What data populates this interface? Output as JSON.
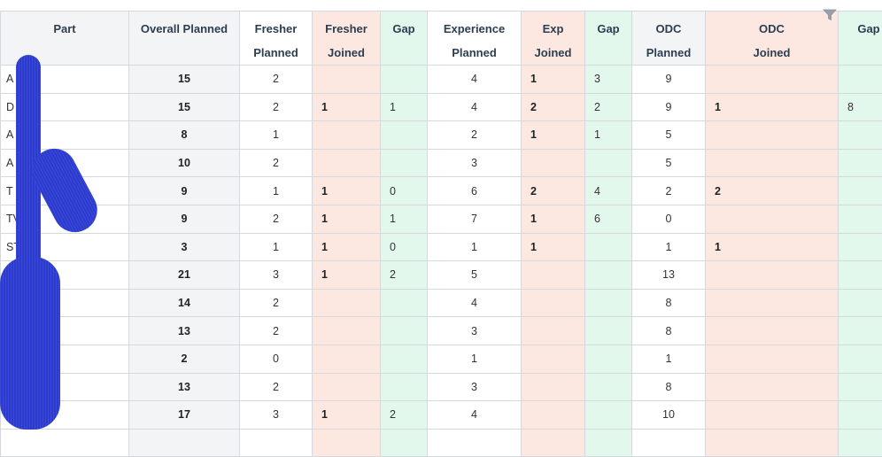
{
  "columns": [
    {
      "line1": "Part",
      "line2": ""
    },
    {
      "line1": "Overall Planned",
      "line2": ""
    },
    {
      "line1": "Fresher",
      "line2": "Planned"
    },
    {
      "line1": "Fresher",
      "line2": "Joined"
    },
    {
      "line1": "Gap",
      "line2": ""
    },
    {
      "line1": "Experience",
      "line2": "Planned"
    },
    {
      "line1": "Exp",
      "line2": "Joined"
    },
    {
      "line1": "Gap",
      "line2": ""
    },
    {
      "line1": "ODC",
      "line2": "Planned"
    },
    {
      "line1": "ODC",
      "line2": "Joined"
    },
    {
      "line1": "Gap",
      "line2": ""
    }
  ],
  "rows": [
    {
      "part": "A      e",
      "overall": "15",
      "fresher_planned": "2",
      "fresher_joined": "",
      "fresher_gap": "",
      "exp_planned": "4",
      "exp_joined": "1",
      "exp_gap": "3",
      "odc_planned": "9",
      "odc_joined": "",
      "odc_gap": ""
    },
    {
      "part": "D",
      "overall": "15",
      "fresher_planned": "2",
      "fresher_joined": "1",
      "fresher_gap": "1",
      "exp_planned": "4",
      "exp_joined": "2",
      "exp_gap": "2",
      "odc_planned": "9",
      "odc_joined": "1",
      "odc_gap": "8"
    },
    {
      "part": "A",
      "overall": "8",
      "fresher_planned": "1",
      "fresher_joined": "",
      "fresher_gap": "",
      "exp_planned": "2",
      "exp_joined": "1",
      "exp_gap": "1",
      "odc_planned": "5",
      "odc_joined": "",
      "odc_gap": ""
    },
    {
      "part": "A",
      "overall": "10",
      "fresher_planned": "2",
      "fresher_joined": "",
      "fresher_gap": "",
      "exp_planned": "3",
      "exp_joined": "",
      "exp_gap": "",
      "odc_planned": "5",
      "odc_joined": "",
      "odc_gap": ""
    },
    {
      "part": "T",
      "overall": "9",
      "fresher_planned": "1",
      "fresher_joined": "1",
      "fresher_gap": "0",
      "exp_planned": "6",
      "exp_joined": "2",
      "exp_gap": "4",
      "odc_planned": "2",
      "odc_joined": "2",
      "odc_gap": ""
    },
    {
      "part": "TV      m",
      "overall": "9",
      "fresher_planned": "2",
      "fresher_joined": "1",
      "fresher_gap": "1",
      "exp_planned": "7",
      "exp_joined": "1",
      "exp_gap": "6",
      "odc_planned": "0",
      "odc_joined": "",
      "odc_gap": ""
    },
    {
      "part": "ST",
      "overall": "3",
      "fresher_planned": "1",
      "fresher_joined": "1",
      "fresher_gap": "0",
      "exp_planned": "1",
      "exp_joined": "1",
      "exp_gap": "",
      "odc_planned": "1",
      "odc_joined": "1",
      "odc_gap": ""
    },
    {
      "part": "",
      "overall": "21",
      "fresher_planned": "3",
      "fresher_joined": "1",
      "fresher_gap": "2",
      "exp_planned": "5",
      "exp_joined": "",
      "exp_gap": "",
      "odc_planned": "13",
      "odc_joined": "",
      "odc_gap": ""
    },
    {
      "part": "",
      "overall": "14",
      "fresher_planned": "2",
      "fresher_joined": "",
      "fresher_gap": "",
      "exp_planned": "4",
      "exp_joined": "",
      "exp_gap": "",
      "odc_planned": "8",
      "odc_joined": "",
      "odc_gap": ""
    },
    {
      "part": "",
      "overall": "13",
      "fresher_planned": "2",
      "fresher_joined": "",
      "fresher_gap": "",
      "exp_planned": "3",
      "exp_joined": "",
      "exp_gap": "",
      "odc_planned": "8",
      "odc_joined": "",
      "odc_gap": ""
    },
    {
      "part": "",
      "overall": "2",
      "fresher_planned": "0",
      "fresher_joined": "",
      "fresher_gap": "",
      "exp_planned": "1",
      "exp_joined": "",
      "exp_gap": "",
      "odc_planned": "1",
      "odc_joined": "",
      "odc_gap": ""
    },
    {
      "part": "",
      "overall": "13",
      "fresher_planned": "2",
      "fresher_joined": "",
      "fresher_gap": "",
      "exp_planned": "3",
      "exp_joined": "",
      "exp_gap": "",
      "odc_planned": "8",
      "odc_joined": "",
      "odc_gap": ""
    },
    {
      "part": "",
      "overall": "17",
      "fresher_planned": "3",
      "fresher_joined": "1",
      "fresher_gap": "2",
      "exp_planned": "4",
      "exp_joined": "",
      "exp_gap": "",
      "odc_planned": "10",
      "odc_joined": "",
      "odc_gap": ""
    },
    {
      "part": "",
      "overall": "",
      "fresher_planned": "",
      "fresher_joined": "",
      "fresher_gap": "",
      "exp_planned": "",
      "exp_joined": "",
      "exp_gap": "",
      "odc_planned": "",
      "odc_joined": "",
      "odc_gap": ""
    }
  ],
  "colors": {
    "header_gray": "#f3f4f6",
    "joined_pink": "#fde8e1",
    "gap_green": "#e3f8ec",
    "border": "#d5d9de",
    "redaction_blue": "#2b3bd0"
  },
  "icons": {
    "filter": "filter-icon"
  }
}
